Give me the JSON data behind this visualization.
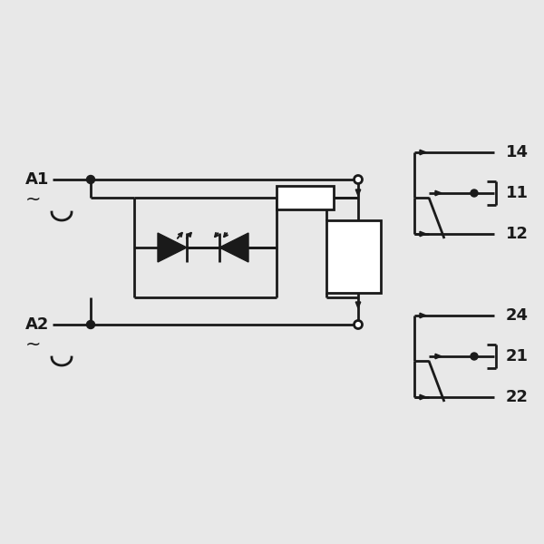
{
  "bg_color": "#e8e8e8",
  "line_color": "#1a1a1a",
  "lw": 2.0,
  "fig_w": 6.0,
  "fig_h": 6.0,
  "dpi": 100
}
